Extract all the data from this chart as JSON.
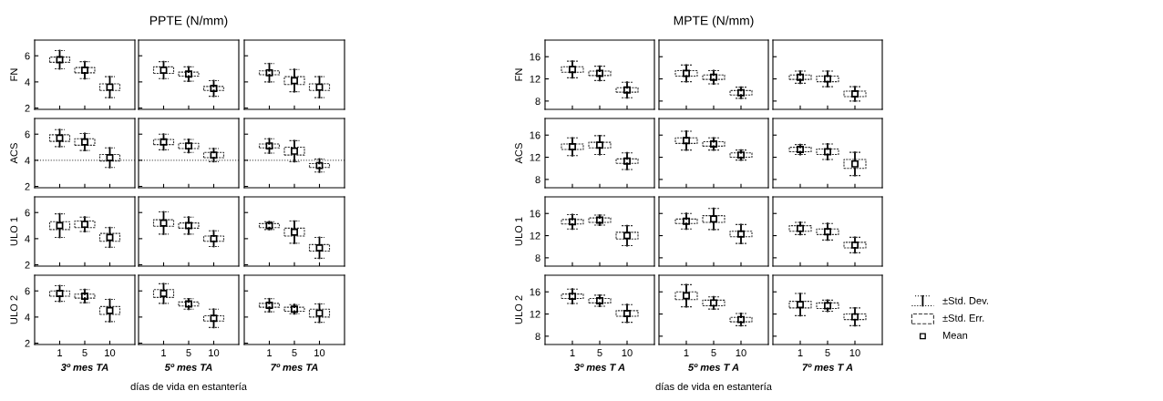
{
  "chart_data": [
    {
      "type": "box",
      "ylabel": "FN",
      "categories": [
        "1",
        "5",
        "10"
      ],
      "ylim": [
        1.9,
        7.2
      ],
      "yticks": [
        2,
        4,
        6
      ],
      "tick_labels": "y",
      "boxes": [
        {
          "low": 5.0,
          "q1": 5.5,
          "median": 5.7,
          "q3": 5.9,
          "high": 6.4
        },
        {
          "low": 4.25,
          "q1": 4.7,
          "median": 4.9,
          "q3": 5.1,
          "high": 5.55
        },
        {
          "low": 2.8,
          "q1": 3.35,
          "median": 3.6,
          "q3": 3.85,
          "high": 4.4
        }
      ]
    },
    {
      "type": "box",
      "title": "PPTE (N/mm)",
      "categories": [
        "1",
        "5",
        "10"
      ],
      "ylim": [
        1.9,
        7.2
      ],
      "yticks": [
        2,
        4,
        6
      ],
      "tick_labels": false,
      "boxes": [
        {
          "low": 4.25,
          "q1": 4.65,
          "median": 4.9,
          "q3": 5.15,
          "high": 5.55
        },
        {
          "low": 4.05,
          "q1": 4.45,
          "median": 4.6,
          "q3": 4.75,
          "high": 5.15
        },
        {
          "low": 2.9,
          "q1": 3.35,
          "median": 3.5,
          "q3": 3.65,
          "high": 4.1
        }
      ]
    },
    {
      "type": "box",
      "categories": [
        "1",
        "5",
        "10"
      ],
      "ylim": [
        1.9,
        7.2
      ],
      "yticks": [
        2,
        4,
        6
      ],
      "tick_labels": false,
      "boxes": [
        {
          "low": 4.0,
          "q1": 4.55,
          "median": 4.7,
          "q3": 4.85,
          "high": 5.4
        },
        {
          "low": 3.25,
          "q1": 3.8,
          "median": 4.1,
          "q3": 4.4,
          "high": 4.95
        },
        {
          "low": 2.8,
          "q1": 3.35,
          "median": 3.6,
          "q3": 3.85,
          "high": 4.4
        }
      ]
    },
    {
      "type": "box",
      "ylabel": "ACS",
      "categories": [
        "1",
        "5",
        "10"
      ],
      "ylim": [
        1.9,
        7.2
      ],
      "yticks": [
        2,
        4,
        6
      ],
      "tick_labels": "y",
      "ref_lines": [
        {
          "axis": "y",
          "value": 4,
          "color": "#555555",
          "line_style": "dotted"
        }
      ],
      "boxes": [
        {
          "low": 5.05,
          "q1": 5.45,
          "median": 5.7,
          "q3": 5.95,
          "high": 6.35
        },
        {
          "low": 4.75,
          "q1": 5.15,
          "median": 5.4,
          "q3": 5.65,
          "high": 6.05
        },
        {
          "low": 3.45,
          "q1": 3.95,
          "median": 4.2,
          "q3": 4.45,
          "high": 4.95
        }
      ]
    },
    {
      "type": "box",
      "categories": [
        "1",
        "5",
        "10"
      ],
      "ylim": [
        1.9,
        7.2
      ],
      "yticks": [
        2,
        4,
        6
      ],
      "tick_labels": false,
      "ref_lines": [
        {
          "axis": "y",
          "value": 4,
          "color": "#555555",
          "line_style": "dotted"
        }
      ],
      "boxes": [
        {
          "low": 4.8,
          "q1": 5.2,
          "median": 5.4,
          "q3": 5.6,
          "high": 6.0
        },
        {
          "low": 4.6,
          "q1": 4.9,
          "median": 5.1,
          "q3": 5.3,
          "high": 5.6
        },
        {
          "low": 3.9,
          "q1": 4.2,
          "median": 4.4,
          "q3": 4.6,
          "high": 4.9
        }
      ]
    },
    {
      "type": "box",
      "categories": [
        "1",
        "5",
        "10"
      ],
      "ylim": [
        1.9,
        7.2
      ],
      "yticks": [
        2,
        4,
        6
      ],
      "tick_labels": false,
      "ref_lines": [
        {
          "axis": "y",
          "value": 4,
          "color": "#555555",
          "line_style": "dotted"
        }
      ],
      "boxes": [
        {
          "low": 4.55,
          "q1": 4.95,
          "median": 5.1,
          "q3": 5.25,
          "high": 5.65
        },
        {
          "low": 3.9,
          "q1": 4.4,
          "median": 4.7,
          "q3": 5.0,
          "high": 5.5
        },
        {
          "low": 3.1,
          "q1": 3.45,
          "median": 3.6,
          "q3": 3.75,
          "high": 4.1
        }
      ]
    },
    {
      "type": "box",
      "ylabel": "ULO 1",
      "categories": [
        "1",
        "5",
        "10"
      ],
      "ylim": [
        1.9,
        7.2
      ],
      "yticks": [
        2,
        4,
        6
      ],
      "tick_labels": "y",
      "boxes": [
        {
          "low": 4.1,
          "q1": 4.7,
          "median": 5.0,
          "q3": 5.3,
          "high": 5.9
        },
        {
          "low": 4.55,
          "q1": 4.85,
          "median": 5.1,
          "q3": 5.35,
          "high": 5.65
        },
        {
          "low": 3.35,
          "q1": 3.8,
          "median": 4.1,
          "q3": 4.4,
          "high": 4.85
        }
      ]
    },
    {
      "type": "box",
      "categories": [
        "1",
        "5",
        "10"
      ],
      "ylim": [
        1.9,
        7.2
      ],
      "yticks": [
        2,
        4,
        6
      ],
      "tick_labels": false,
      "boxes": [
        {
          "low": 4.35,
          "q1": 4.95,
          "median": 5.2,
          "q3": 5.45,
          "high": 6.05
        },
        {
          "low": 4.35,
          "q1": 4.8,
          "median": 5.0,
          "q3": 5.2,
          "high": 5.65
        },
        {
          "low": 3.4,
          "q1": 3.8,
          "median": 4.0,
          "q3": 4.2,
          "high": 4.6
        }
      ]
    },
    {
      "type": "box",
      "categories": [
        "1",
        "5",
        "10"
      ],
      "ylim": [
        1.9,
        7.2
      ],
      "yticks": [
        2,
        4,
        6
      ],
      "tick_labels": false,
      "boxes": [
        {
          "low": 4.7,
          "q1": 4.85,
          "median": 5.0,
          "q3": 5.15,
          "high": 5.3
        },
        {
          "low": 3.65,
          "q1": 4.2,
          "median": 4.5,
          "q3": 4.8,
          "high": 5.35
        },
        {
          "low": 2.5,
          "q1": 3.05,
          "median": 3.3,
          "q3": 3.55,
          "high": 4.1
        }
      ]
    },
    {
      "type": "box",
      "ylabel": "ULO 2",
      "xlabel": "3º mes TA",
      "categories": [
        "1",
        "5",
        "10"
      ],
      "ylim": [
        1.9,
        7.2
      ],
      "yticks": [
        2,
        4,
        6
      ],
      "boxes": [
        {
          "low": 5.2,
          "q1": 5.6,
          "median": 5.8,
          "q3": 6.0,
          "high": 6.4
        },
        {
          "low": 5.1,
          "q1": 5.45,
          "median": 5.6,
          "q3": 5.75,
          "high": 6.1
        },
        {
          "low": 3.65,
          "q1": 4.2,
          "median": 4.5,
          "q3": 4.8,
          "high": 5.35
        }
      ]
    },
    {
      "type": "box",
      "xlabel": "5º mes TA",
      "categories": [
        "1",
        "5",
        "10"
      ],
      "ylim": [
        1.9,
        7.2
      ],
      "yticks": [
        2,
        4,
        6
      ],
      "tick_labels": "x",
      "annotations": [
        "días de vida en estantería"
      ],
      "boxes": [
        {
          "low": 5.05,
          "q1": 5.5,
          "median": 5.8,
          "q3": 6.1,
          "high": 6.55
        },
        {
          "low": 4.6,
          "q1": 4.85,
          "median": 5.0,
          "q3": 5.15,
          "high": 5.4
        },
        {
          "low": 3.2,
          "q1": 3.7,
          "median": 3.9,
          "q3": 4.1,
          "high": 4.6
        }
      ]
    },
    {
      "type": "box",
      "xlabel": "7º mes TA",
      "categories": [
        "1",
        "5",
        "10"
      ],
      "ylim": [
        1.9,
        7.2
      ],
      "yticks": [
        2,
        4,
        6
      ],
      "tick_labels": "x",
      "boxes": [
        {
          "low": 4.4,
          "q1": 4.75,
          "median": 4.9,
          "q3": 5.05,
          "high": 5.4
        },
        {
          "low": 4.25,
          "q1": 4.45,
          "median": 4.6,
          "q3": 4.75,
          "high": 4.95
        },
        {
          "low": 3.6,
          "q1": 4.0,
          "median": 4.3,
          "q3": 4.6,
          "high": 5.0
        }
      ]
    },
    {
      "type": "box",
      "ylabel": "FN",
      "categories": [
        "1",
        "5",
        "10"
      ],
      "ylim": [
        6.5,
        19
      ],
      "yticks": [
        8,
        12,
        16
      ],
      "tick_labels": "y",
      "boxes": [
        {
          "low": 12.2,
          "q1": 13.2,
          "median": 13.7,
          "q3": 14.2,
          "high": 15.2
        },
        {
          "low": 11.7,
          "q1": 12.6,
          "median": 13.0,
          "q3": 13.4,
          "high": 14.3
        },
        {
          "low": 8.6,
          "q1": 9.6,
          "median": 10.0,
          "q3": 10.4,
          "high": 11.4
        }
      ]
    },
    {
      "type": "box",
      "title": "MPTE (N/mm)",
      "categories": [
        "1",
        "5",
        "10"
      ],
      "ylim": [
        6.5,
        19
      ],
      "yticks": [
        8,
        12,
        16
      ],
      "tick_labels": false,
      "boxes": [
        {
          "low": 11.5,
          "q1": 12.5,
          "median": 13.0,
          "q3": 13.5,
          "high": 14.5
        },
        {
          "low": 11.1,
          "q1": 11.9,
          "median": 12.3,
          "q3": 12.7,
          "high": 13.5
        },
        {
          "low": 8.5,
          "q1": 9.1,
          "median": 9.5,
          "q3": 9.9,
          "high": 10.5
        }
      ]
    },
    {
      "type": "box",
      "categories": [
        "1",
        "5",
        "10"
      ],
      "ylim": [
        6.5,
        19
      ],
      "yticks": [
        8,
        12,
        16
      ],
      "tick_labels": false,
      "boxes": [
        {
          "low": 11.2,
          "q1": 11.9,
          "median": 12.3,
          "q3": 12.7,
          "high": 13.4
        },
        {
          "low": 10.6,
          "q1": 11.5,
          "median": 12.0,
          "q3": 12.5,
          "high": 13.4
        },
        {
          "low": 8.0,
          "q1": 8.8,
          "median": 9.3,
          "q3": 9.8,
          "high": 10.6
        }
      ]
    },
    {
      "type": "box",
      "ylabel": "ACS",
      "categories": [
        "1",
        "5",
        "10"
      ],
      "ylim": [
        6.5,
        19
      ],
      "yticks": [
        8,
        12,
        16
      ],
      "tick_labels": "y",
      "boxes": [
        {
          "low": 12.3,
          "q1": 13.4,
          "median": 13.9,
          "q3": 14.4,
          "high": 15.5
        },
        {
          "low": 12.5,
          "q1": 13.7,
          "median": 14.2,
          "q3": 14.7,
          "high": 15.9
        },
        {
          "low": 9.8,
          "q1": 10.9,
          "median": 11.3,
          "q3": 11.7,
          "high": 12.8
        }
      ]
    },
    {
      "type": "box",
      "categories": [
        "1",
        "5",
        "10"
      ],
      "ylim": [
        6.5,
        19
      ],
      "yticks": [
        8,
        12,
        16
      ],
      "tick_labels": false,
      "boxes": [
        {
          "low": 13.3,
          "q1": 14.5,
          "median": 15.0,
          "q3": 15.5,
          "high": 16.7
        },
        {
          "low": 13.3,
          "q1": 14.0,
          "median": 14.4,
          "q3": 14.8,
          "high": 15.5
        },
        {
          "low": 11.5,
          "q1": 12.0,
          "median": 12.4,
          "q3": 12.8,
          "high": 13.3
        }
      ]
    },
    {
      "type": "box",
      "categories": [
        "1",
        "5",
        "10"
      ],
      "ylim": [
        6.5,
        19
      ],
      "yticks": [
        8,
        12,
        16
      ],
      "tick_labels": false,
      "boxes": [
        {
          "low": 12.5,
          "q1": 13.0,
          "median": 13.4,
          "q3": 13.8,
          "high": 14.3
        },
        {
          "low": 11.6,
          "q1": 12.5,
          "median": 13.0,
          "q3": 13.5,
          "high": 14.4
        },
        {
          "low": 8.7,
          "q1": 10.0,
          "median": 10.8,
          "q3": 11.6,
          "high": 12.9
        }
      ]
    },
    {
      "type": "box",
      "ylabel": "ULO 1",
      "categories": [
        "1",
        "5",
        "10"
      ],
      "ylim": [
        6.5,
        19
      ],
      "yticks": [
        8,
        12,
        16
      ],
      "tick_labels": "y",
      "boxes": [
        {
          "low": 13.2,
          "q1": 14.1,
          "median": 14.5,
          "q3": 14.9,
          "high": 15.8
        },
        {
          "low": 13.9,
          "q1": 14.4,
          "median": 14.8,
          "q3": 15.2,
          "high": 15.7
        },
        {
          "low": 10.2,
          "q1": 11.4,
          "median": 12.0,
          "q3": 12.6,
          "high": 13.8
        }
      ]
    },
    {
      "type": "box",
      "categories": [
        "1",
        "5",
        "10"
      ],
      "ylim": [
        6.5,
        19
      ],
      "yticks": [
        8,
        12,
        16
      ],
      "tick_labels": false,
      "boxes": [
        {
          "low": 13.2,
          "q1": 14.2,
          "median": 14.6,
          "q3": 15.0,
          "high": 16.0
        },
        {
          "low": 13.1,
          "q1": 14.4,
          "median": 15.0,
          "q3": 15.6,
          "high": 16.9
        },
        {
          "low": 10.6,
          "q1": 11.8,
          "median": 12.3,
          "q3": 12.8,
          "high": 14.0
        }
      ]
    },
    {
      "type": "box",
      "categories": [
        "1",
        "5",
        "10"
      ],
      "ylim": [
        6.5,
        19
      ],
      "yticks": [
        8,
        12,
        16
      ],
      "tick_labels": false,
      "boxes": [
        {
          "low": 12.2,
          "q1": 12.8,
          "median": 13.3,
          "q3": 13.8,
          "high": 14.4
        },
        {
          "low": 11.2,
          "q1": 12.2,
          "median": 12.7,
          "q3": 13.2,
          "high": 14.2
        },
        {
          "low": 8.9,
          "q1": 9.8,
          "median": 10.3,
          "q3": 10.8,
          "high": 11.7
        }
      ]
    },
    {
      "type": "box",
      "ylabel": "ULO 2",
      "xlabel": "3º mes T A",
      "categories": [
        "1",
        "5",
        "10"
      ],
      "ylim": [
        6.5,
        19
      ],
      "yticks": [
        8,
        12,
        16
      ],
      "boxes": [
        {
          "low": 13.9,
          "q1": 14.8,
          "median": 15.2,
          "q3": 15.6,
          "high": 16.5
        },
        {
          "low": 13.4,
          "q1": 14.0,
          "median": 14.4,
          "q3": 14.8,
          "high": 15.4
        },
        {
          "low": 10.5,
          "q1": 11.6,
          "median": 12.1,
          "q3": 12.6,
          "high": 13.7
        }
      ]
    },
    {
      "type": "box",
      "xlabel": "5º mes T A",
      "categories": [
        "1",
        "5",
        "10"
      ],
      "ylim": [
        6.5,
        19
      ],
      "yticks": [
        8,
        12,
        16
      ],
      "tick_labels": "x",
      "annotations": [
        "días de vida en estantería"
      ],
      "boxes": [
        {
          "low": 13.3,
          "q1": 14.6,
          "median": 15.3,
          "q3": 16.0,
          "high": 17.3
        },
        {
          "low": 12.9,
          "q1": 13.5,
          "median": 14.0,
          "q3": 14.5,
          "high": 15.1
        },
        {
          "low": 9.9,
          "q1": 10.6,
          "median": 11.0,
          "q3": 11.4,
          "high": 12.1
        }
      ]
    },
    {
      "type": "box",
      "xlabel": "7º mes T A",
      "categories": [
        "1",
        "5",
        "10"
      ],
      "ylim": [
        6.5,
        19
      ],
      "yticks": [
        8,
        12,
        16
      ],
      "tick_labels": "x",
      "annotations": [
        "±Std. Dev.",
        "±Std. Err.",
        "Mean"
      ],
      "boxes": [
        {
          "low": 11.7,
          "q1": 13.1,
          "median": 13.7,
          "q3": 14.3,
          "high": 15.7
        },
        {
          "low": 12.5,
          "q1": 13.0,
          "median": 13.5,
          "q3": 14.0,
          "high": 14.5
        },
        {
          "low": 9.9,
          "q1": 11.0,
          "median": 11.5,
          "q3": 12.0,
          "high": 13.1
        }
      ]
    }
  ]
}
